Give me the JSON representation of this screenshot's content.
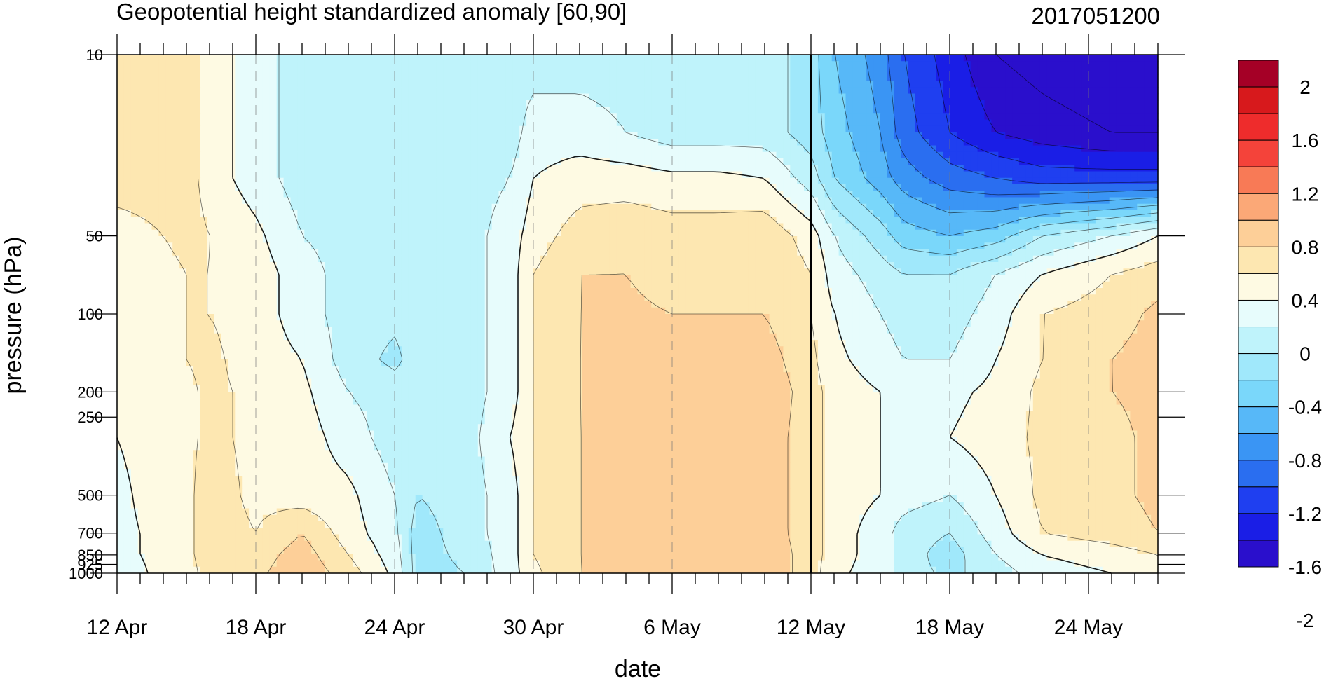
{
  "chart_data": {
    "type": "heatmap",
    "subtype": "time-pressure filled contour",
    "title": "Geopotential height standardized anomaly [60,90]",
    "subtitle": "2017051200",
    "xlabel": "date",
    "ylabel": "pressure (hPa)",
    "x_ticks": [
      "12 Apr",
      "18 Apr",
      "24 Apr",
      "30 Apr",
      "6 May",
      "12 May",
      "18 May",
      "24 May"
    ],
    "x_tick_days": [
      0,
      6,
      12,
      18,
      24,
      30,
      36,
      42
    ],
    "xlim_days": [
      0,
      45
    ],
    "y_ticks": [
      "10",
      "50",
      "100",
      "200",
      "250",
      "500",
      "700",
      "850",
      "925",
      "1000"
    ],
    "y_tick_values": [
      10,
      50,
      100,
      200,
      250,
      500,
      700,
      850,
      925,
      1000
    ],
    "ylim": [
      1000,
      10
    ],
    "y_scale": "log",
    "reference_line_day": 30,
    "colorbar": {
      "labels": [
        "2",
        "1.6",
        "1.2",
        "0.8",
        "0.4",
        "0",
        "-0.4",
        "-0.8",
        "-1.2",
        "-1.6",
        "-2"
      ],
      "label_values": [
        2,
        1.6,
        1.2,
        0.8,
        0.4,
        0,
        -0.4,
        -0.8,
        -1.2,
        -1.6,
        -2
      ],
      "colors": [
        "#a50026",
        "#d7191c",
        "#ee2c2c",
        "#f4433a",
        "#f87a56",
        "#fba877",
        "#fdcf98",
        "#fde7b1",
        "#fefae3",
        "#e7fcfc",
        "#bff3fb",
        "#a0e8fb",
        "#7ad7fa",
        "#57b8f8",
        "#3a95f4",
        "#2a6ef0",
        "#1f3ff0",
        "#1a1ee6",
        "#2a0fcc"
      ]
    },
    "columns_days": [
      0,
      2,
      3,
      4,
      6,
      8,
      10,
      12,
      13,
      15,
      17,
      18,
      20,
      22,
      24,
      26,
      28,
      30,
      31,
      33,
      34,
      36,
      38,
      40,
      43,
      45
    ],
    "levels_hpa": [
      10,
      20,
      30,
      50,
      70,
      100,
      150,
      200,
      300,
      500,
      700,
      850,
      1000
    ],
    "values": [
      [
        0.3,
        0.3,
        0.3,
        0.1,
        -0.1,
        -0.3,
        -0.3,
        -0.3,
        -0.3,
        -0.3,
        -0.3,
        -0.3,
        -0.3,
        -0.3,
        -0.3,
        -0.3,
        -0.3,
        -0.5,
        -0.8,
        -1.1,
        -1.4,
        -1.7,
        -2.0,
        -2.1,
        -2.2,
        -2.2
      ],
      [
        0.3,
        0.3,
        0.3,
        0.1,
        -0.1,
        -0.3,
        -0.3,
        -0.3,
        -0.3,
        -0.3,
        -0.3,
        -0.1,
        -0.1,
        -0.2,
        -0.3,
        -0.3,
        -0.3,
        -0.5,
        -0.7,
        -1.0,
        -1.3,
        -1.6,
        -1.8,
        -1.9,
        -2.0,
        -2.0
      ],
      [
        0.3,
        0.3,
        0.3,
        0.1,
        -0.1,
        -0.3,
        -0.3,
        -0.3,
        -0.3,
        -0.3,
        -0.2,
        0.0,
        0.1,
        0.1,
        0.05,
        0.05,
        0.0,
        -0.3,
        -0.6,
        -0.9,
        -1.1,
        -1.3,
        -1.4,
        -1.5,
        -1.5,
        -1.5
      ],
      [
        0.1,
        0.2,
        0.3,
        0.2,
        0.05,
        -0.2,
        -0.3,
        -0.3,
        -0.3,
        -0.3,
        -0.1,
        0.1,
        0.3,
        0.35,
        0.3,
        0.3,
        0.35,
        0.1,
        -0.2,
        -0.5,
        -0.7,
        -0.8,
        -0.7,
        -0.4,
        -0.2,
        0.0
      ],
      [
        0.1,
        0.1,
        0.2,
        0.2,
        0.1,
        -0.1,
        -0.3,
        -0.3,
        -0.3,
        -0.3,
        -0.1,
        0.2,
        0.4,
        0.4,
        0.3,
        0.35,
        0.4,
        0.2,
        -0.1,
        -0.3,
        -0.4,
        -0.4,
        -0.2,
        0.0,
        0.2,
        0.3
      ],
      [
        0.1,
        0.1,
        0.2,
        0.2,
        0.1,
        -0.1,
        -0.3,
        -0.35,
        -0.3,
        -0.3,
        -0.1,
        0.2,
        0.4,
        0.45,
        0.4,
        0.4,
        0.4,
        0.2,
        0.0,
        -0.2,
        -0.3,
        -0.3,
        -0.1,
        0.2,
        0.3,
        0.45
      ],
      [
        0.05,
        0.1,
        0.2,
        0.25,
        0.1,
        0.0,
        -0.3,
        -0.45,
        -0.3,
        -0.3,
        -0.1,
        0.2,
        0.4,
        0.5,
        0.4,
        0.5,
        0.5,
        0.25,
        0.05,
        -0.1,
        -0.2,
        -0.2,
        0.0,
        0.2,
        0.4,
        0.5
      ],
      [
        0.05,
        0.1,
        0.15,
        0.25,
        0.15,
        0.05,
        -0.2,
        -0.3,
        -0.3,
        -0.3,
        -0.1,
        0.2,
        0.4,
        0.5,
        0.45,
        0.55,
        0.55,
        0.3,
        0.1,
        0.0,
        -0.05,
        -0.05,
        0.05,
        0.25,
        0.4,
        0.45
      ],
      [
        0.0,
        0.1,
        0.15,
        0.25,
        0.15,
        0.1,
        -0.1,
        -0.3,
        -0.35,
        -0.3,
        0.0,
        0.2,
        0.4,
        0.45,
        0.4,
        0.5,
        0.5,
        0.3,
        0.1,
        0.0,
        -0.05,
        0.0,
        0.1,
        0.25,
        0.35,
        0.45
      ],
      [
        -0.05,
        0.1,
        0.15,
        0.3,
        0.15,
        0.1,
        0.05,
        -0.2,
        -0.4,
        -0.3,
        -0.1,
        0.2,
        0.4,
        0.45,
        0.4,
        0.5,
        0.5,
        0.3,
        0.1,
        0.0,
        -0.1,
        -0.2,
        0.0,
        0.25,
        0.35,
        0.45
      ],
      [
        -0.05,
        0.05,
        0.15,
        0.3,
        0.2,
        0.4,
        0.1,
        -0.15,
        -0.5,
        -0.3,
        -0.1,
        0.2,
        0.4,
        0.45,
        0.5,
        0.55,
        0.5,
        0.3,
        0.1,
        -0.1,
        -0.3,
        -0.4,
        -0.1,
        0.2,
        0.3,
        0.4
      ],
      [
        -0.05,
        0.05,
        0.15,
        0.3,
        0.3,
        0.5,
        0.2,
        -0.1,
        -0.5,
        -0.35,
        -0.1,
        0.2,
        0.4,
        0.45,
        0.55,
        0.5,
        0.55,
        0.3,
        0.1,
        -0.1,
        -0.3,
        -0.5,
        -0.2,
        0.0,
        0.1,
        0.2
      ],
      [
        -0.1,
        0.05,
        0.1,
        0.3,
        0.35,
        0.55,
        0.3,
        -0.05,
        -0.5,
        -0.4,
        -0.1,
        0.15,
        0.4,
        0.4,
        0.5,
        0.45,
        0.55,
        0.3,
        0.05,
        -0.1,
        -0.3,
        -0.45,
        -0.3,
        -0.1,
        0.0,
        0.1
      ]
    ]
  }
}
